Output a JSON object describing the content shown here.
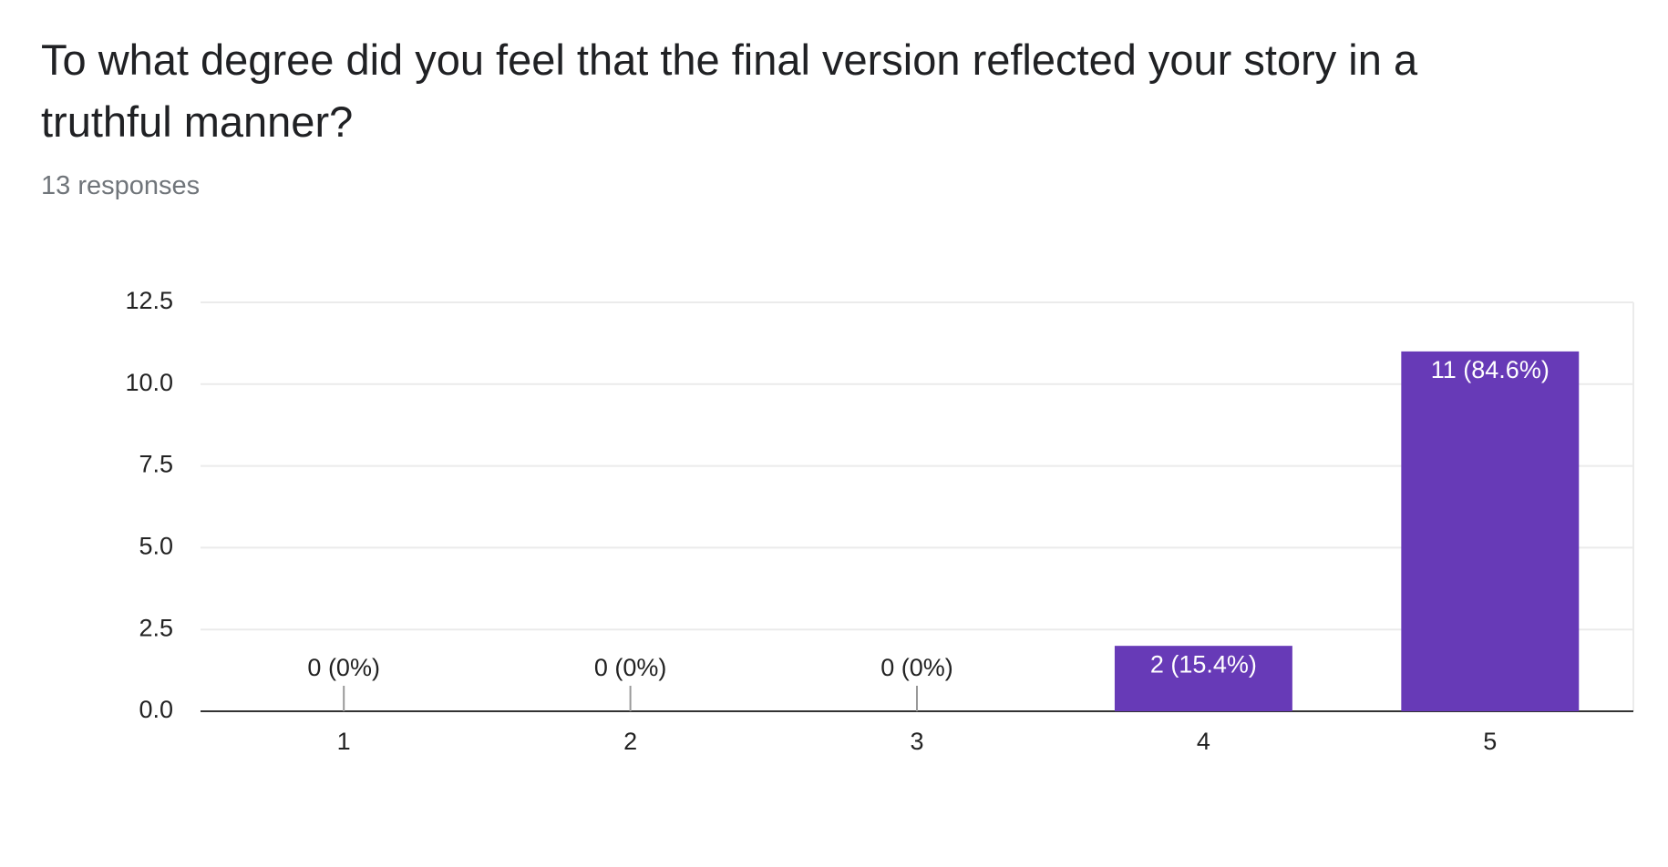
{
  "chart_data": {
    "type": "bar",
    "title": "To what degree did you feel that the final version reflected your story in a truthful manner?",
    "subtitle": "13 responses",
    "categories": [
      "1",
      "2",
      "3",
      "4",
      "5"
    ],
    "values": [
      0,
      0,
      0,
      2,
      11
    ],
    "value_labels": [
      "0 (0%)",
      "0 (0%)",
      "0 (0%)",
      "2 (15.4%)",
      "11 (84.6%)"
    ],
    "color": "#673ab7",
    "ylim": [
      0,
      12.5
    ],
    "yticks": [
      {
        "value": 0,
        "label": "0.0"
      },
      2.5,
      {
        "value": 5,
        "label": "5.0"
      },
      7.5,
      {
        "value": 10,
        "label": "10.0"
      },
      12.5
    ],
    "grid": true
  }
}
